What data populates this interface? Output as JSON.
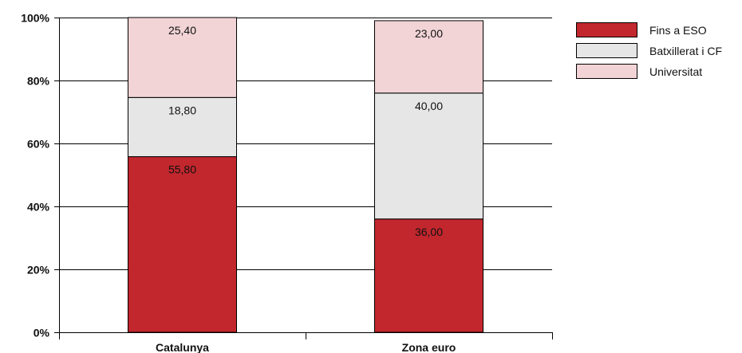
{
  "chart_data": {
    "type": "bar",
    "stacked": true,
    "categories": [
      "Catalunya",
      "Zona euro"
    ],
    "series": [
      {
        "name": "Fins a ESO",
        "values": [
          55.8,
          36.0
        ],
        "labels": [
          "55,80",
          "36,00"
        ],
        "color": "#c1272d"
      },
      {
        "name": "Batxillerat i CF",
        "values": [
          18.8,
          40.0
        ],
        "labels": [
          "18,80",
          "40,00"
        ],
        "color": "#e6e6e6"
      },
      {
        "name": "Universitat",
        "values": [
          25.4,
          23.0
        ],
        "labels": [
          "25,40",
          "23,00"
        ],
        "color": "#f2d4d6"
      }
    ],
    "yticks": [
      0,
      20,
      40,
      60,
      80,
      100
    ],
    "ytick_labels": [
      "0%",
      "20%",
      "40%",
      "60%",
      "80%",
      "100%"
    ],
    "ylim": [
      0,
      100
    ],
    "grid": true,
    "legend_position": "top-right"
  }
}
